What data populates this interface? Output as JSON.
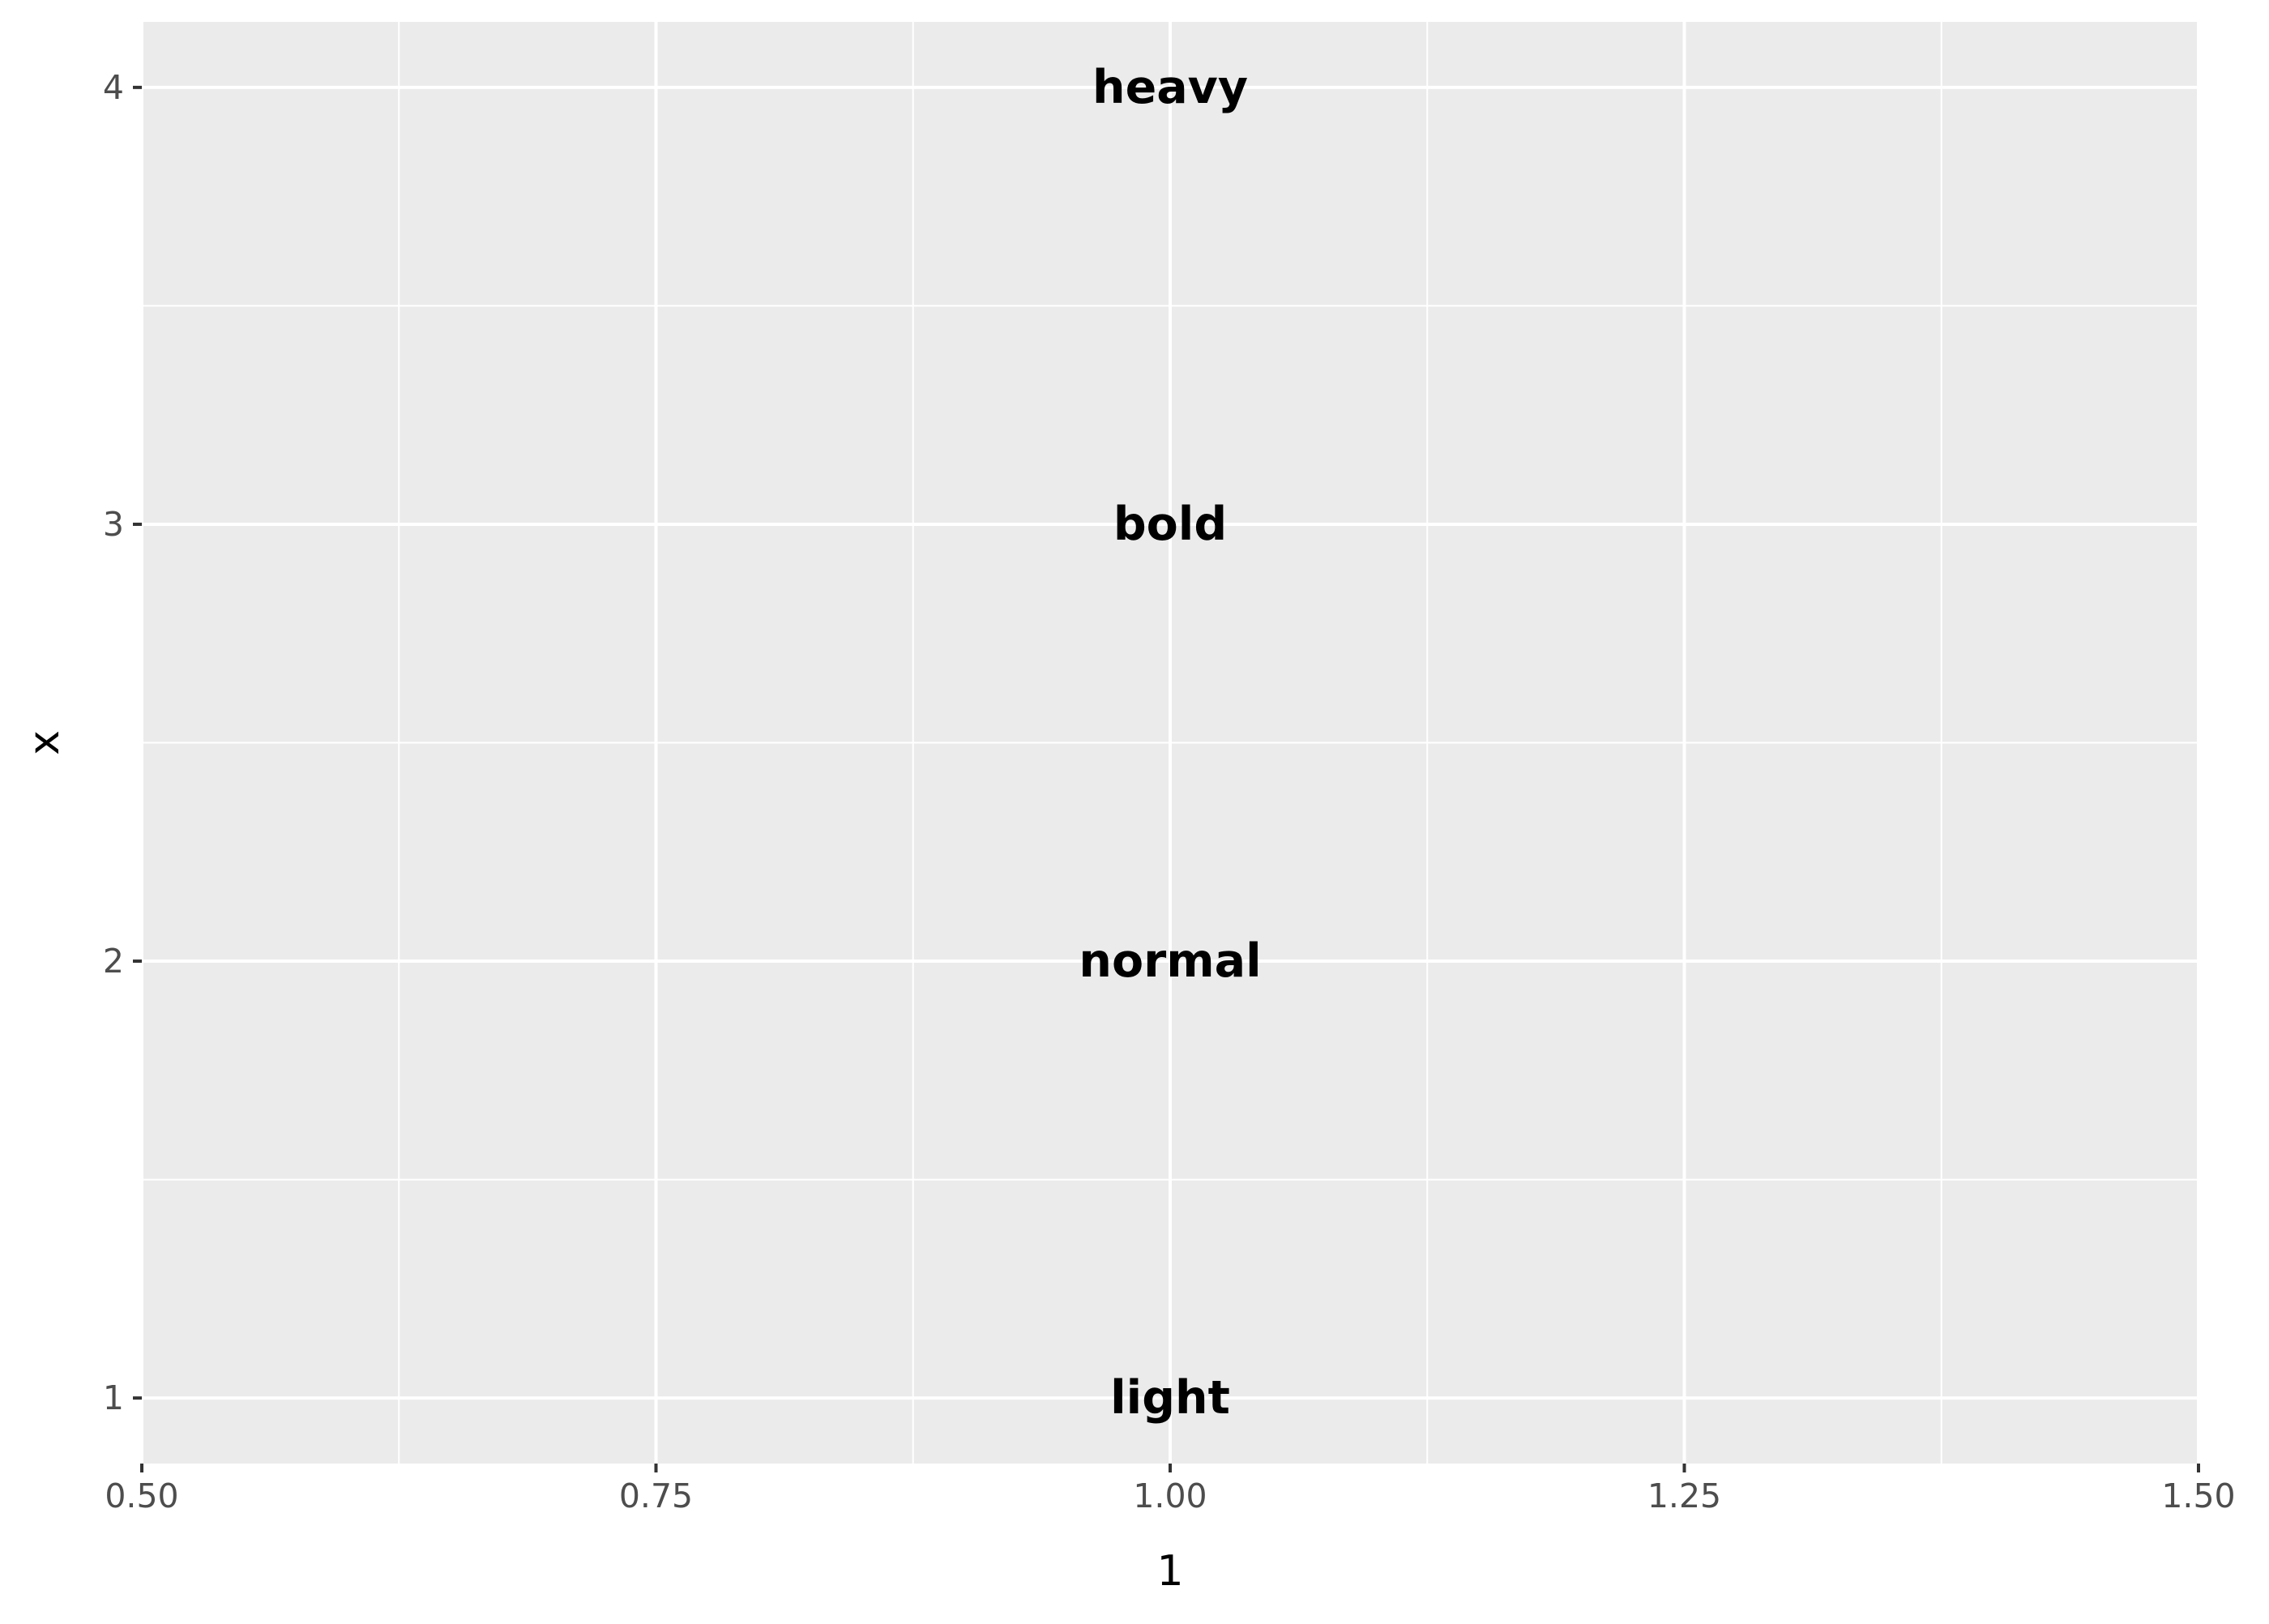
{
  "chart_data": {
    "type": "scatter",
    "title": "",
    "xlabel": "1",
    "ylabel": "x",
    "xlim": [
      0.5,
      1.5
    ],
    "ylim": [
      0.85,
      4.15
    ],
    "x_ticks": [
      0.5,
      0.75,
      1.0,
      1.25,
      1.5
    ],
    "x_tick_labels": [
      "0.50",
      "0.75",
      "1.00",
      "1.25",
      "1.50"
    ],
    "y_ticks": [
      1,
      2,
      3,
      4
    ],
    "y_tick_labels": [
      "1",
      "2",
      "3",
      "4"
    ],
    "grid": true,
    "points": [
      {
        "x": 1.0,
        "y": 1,
        "label": "light"
      },
      {
        "x": 1.0,
        "y": 2,
        "label": "normal"
      },
      {
        "x": 1.0,
        "y": 3,
        "label": "bold"
      },
      {
        "x": 1.0,
        "y": 4,
        "label": "heavy"
      }
    ],
    "colors": {
      "panel_background": "#ebebeb",
      "grid_major": "#ffffff",
      "grid_minor": "#ffffff",
      "tick_text": "#4d4d4d",
      "axis_title": "#000000",
      "label_text": "#000000"
    }
  }
}
